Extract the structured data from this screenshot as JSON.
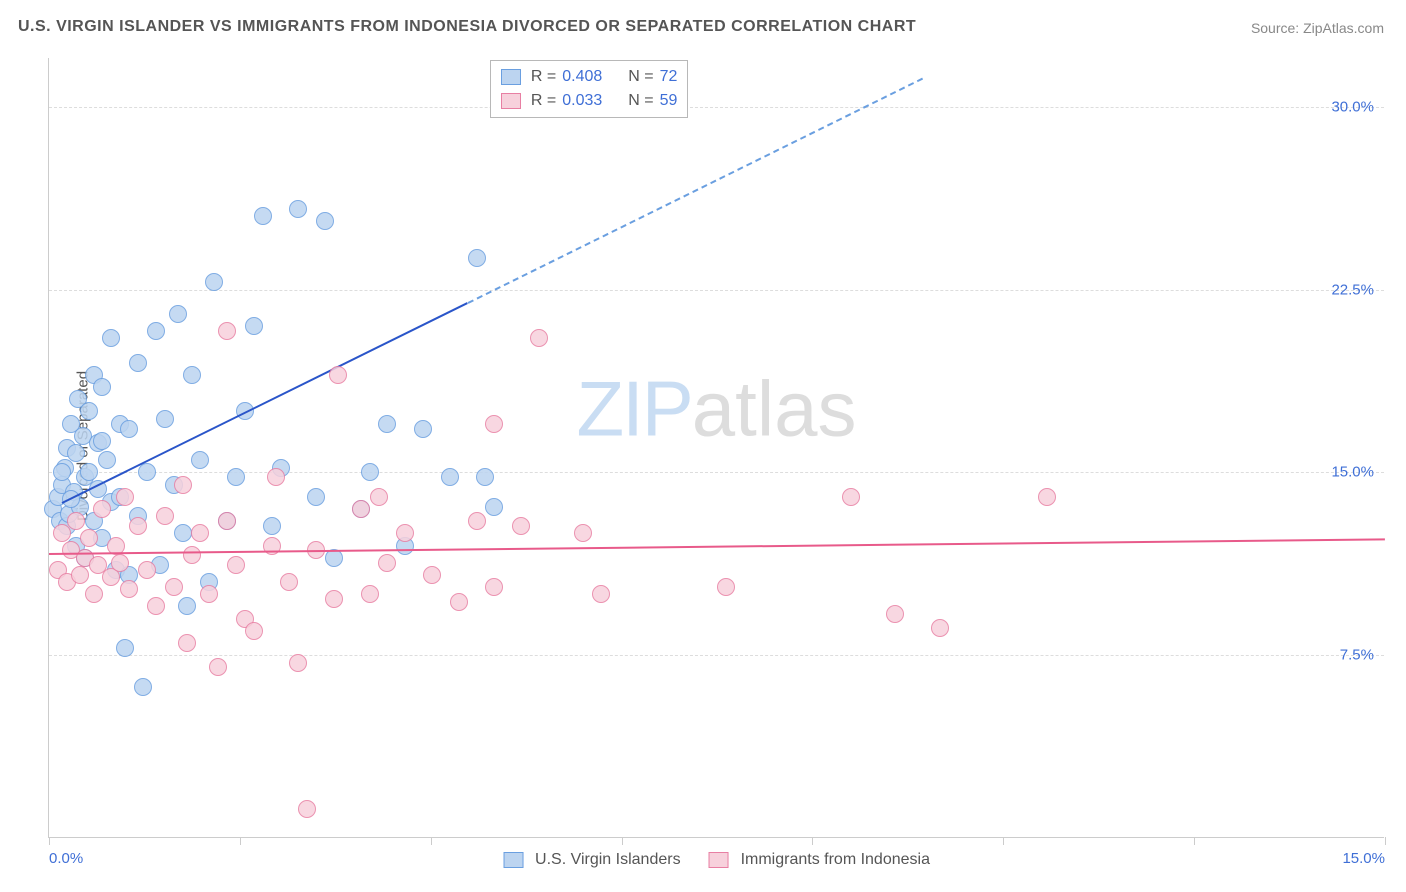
{
  "title": "U.S. VIRGIN ISLANDER VS IMMIGRANTS FROM INDONESIA DIVORCED OR SEPARATED CORRELATION CHART",
  "source_label": "Source: ",
  "source_name": "ZipAtlas.com",
  "y_axis_label": "Divorced or Separated",
  "watermark_zip": "ZIP",
  "watermark_atlas": "atlas",
  "chart": {
    "type": "scatter",
    "x_domain": [
      0,
      15
    ],
    "y_domain": [
      0,
      32
    ],
    "y_ticks": [
      {
        "value": 7.5,
        "label": "7.5%"
      },
      {
        "value": 15.0,
        "label": "15.0%"
      },
      {
        "value": 22.5,
        "label": "22.5%"
      },
      {
        "value": 30.0,
        "label": "30.0%"
      }
    ],
    "x_tick_positions": [
      0,
      2.14,
      4.29,
      6.43,
      8.57,
      10.71,
      12.86,
      15
    ],
    "x_tick_labels": {
      "first": "0.0%",
      "last": "15.0%"
    },
    "x_label_color": "#3f6fd6",
    "y_label_color": "#3f6fd6",
    "grid_color": "#dddddd",
    "marker_radius": 9,
    "series": [
      {
        "id": "usvi",
        "name": "U.S. Virgin Islanders",
        "color_fill": "#bcd4f0",
        "color_stroke": "#6a9fe0",
        "R": "0.408",
        "N": "72",
        "trend": {
          "x0": 0.15,
          "y0": 13.8,
          "x1": 4.7,
          "y1": 22.0,
          "x1_dash": 9.8,
          "y1_dash": 31.2,
          "solid_color": "#2a55c9",
          "dash_color": "#6a9fe0"
        },
        "points": [
          [
            0.05,
            13.5
          ],
          [
            0.1,
            14.0
          ],
          [
            0.12,
            13.0
          ],
          [
            0.15,
            14.5
          ],
          [
            0.18,
            15.2
          ],
          [
            0.2,
            12.8
          ],
          [
            0.2,
            16.0
          ],
          [
            0.22,
            13.3
          ],
          [
            0.25,
            17.0
          ],
          [
            0.28,
            14.2
          ],
          [
            0.3,
            15.8
          ],
          [
            0.3,
            12.0
          ],
          [
            0.32,
            18.0
          ],
          [
            0.35,
            13.6
          ],
          [
            0.38,
            16.5
          ],
          [
            0.4,
            14.8
          ],
          [
            0.4,
            11.5
          ],
          [
            0.45,
            15.0
          ],
          [
            0.45,
            17.5
          ],
          [
            0.5,
            13.0
          ],
          [
            0.5,
            19.0
          ],
          [
            0.55,
            14.3
          ],
          [
            0.55,
            16.2
          ],
          [
            0.6,
            12.3
          ],
          [
            0.6,
            18.5
          ],
          [
            0.65,
            15.5
          ],
          [
            0.7,
            20.5
          ],
          [
            0.7,
            13.8
          ],
          [
            0.75,
            11.0
          ],
          [
            0.8,
            14.0
          ],
          [
            0.8,
            17.0
          ],
          [
            0.85,
            7.8
          ],
          [
            0.9,
            16.8
          ],
          [
            0.9,
            10.8
          ],
          [
            1.0,
            13.2
          ],
          [
            1.0,
            19.5
          ],
          [
            1.05,
            6.2
          ],
          [
            1.1,
            15.0
          ],
          [
            1.2,
            20.8
          ],
          [
            1.25,
            11.2
          ],
          [
            1.3,
            17.2
          ],
          [
            1.4,
            14.5
          ],
          [
            1.45,
            21.5
          ],
          [
            1.5,
            12.5
          ],
          [
            1.55,
            9.5
          ],
          [
            1.6,
            19.0
          ],
          [
            1.7,
            15.5
          ],
          [
            1.8,
            10.5
          ],
          [
            1.85,
            22.8
          ],
          [
            2.0,
            13.0
          ],
          [
            2.1,
            14.8
          ],
          [
            2.2,
            17.5
          ],
          [
            2.3,
            21.0
          ],
          [
            2.5,
            12.8
          ],
          [
            2.6,
            15.2
          ],
          [
            2.8,
            25.8
          ],
          [
            3.0,
            14.0
          ],
          [
            3.1,
            25.3
          ],
          [
            3.2,
            11.5
          ],
          [
            3.5,
            13.5
          ],
          [
            3.6,
            15.0
          ],
          [
            3.8,
            17.0
          ],
          [
            4.0,
            12.0
          ],
          [
            4.2,
            16.8
          ],
          [
            4.5,
            14.8
          ],
          [
            4.8,
            23.8
          ],
          [
            5.0,
            13.6
          ],
          [
            4.9,
            14.8
          ],
          [
            2.4,
            25.5
          ],
          [
            0.6,
            16.3
          ],
          [
            0.15,
            15.0
          ],
          [
            0.25,
            13.9
          ]
        ]
      },
      {
        "id": "indonesia",
        "name": "Immigrants from Indonesia",
        "color_fill": "#f7d1dc",
        "color_stroke": "#e87fa3",
        "R": "0.033",
        "N": "59",
        "trend": {
          "x0": 0.0,
          "y0": 11.7,
          "x1": 15.0,
          "y1": 12.3,
          "solid_color": "#e85a8a"
        },
        "points": [
          [
            0.1,
            11.0
          ],
          [
            0.15,
            12.5
          ],
          [
            0.2,
            10.5
          ],
          [
            0.25,
            11.8
          ],
          [
            0.3,
            13.0
          ],
          [
            0.35,
            10.8
          ],
          [
            0.4,
            11.5
          ],
          [
            0.45,
            12.3
          ],
          [
            0.5,
            10.0
          ],
          [
            0.55,
            11.2
          ],
          [
            0.6,
            13.5
          ],
          [
            0.7,
            10.7
          ],
          [
            0.75,
            12.0
          ],
          [
            0.8,
            11.3
          ],
          [
            0.85,
            14.0
          ],
          [
            0.9,
            10.2
          ],
          [
            1.0,
            12.8
          ],
          [
            1.1,
            11.0
          ],
          [
            1.2,
            9.5
          ],
          [
            1.3,
            13.2
          ],
          [
            1.4,
            10.3
          ],
          [
            1.5,
            14.5
          ],
          [
            1.55,
            8.0
          ],
          [
            1.6,
            11.6
          ],
          [
            1.7,
            12.5
          ],
          [
            1.8,
            10.0
          ],
          [
            1.9,
            7.0
          ],
          [
            2.0,
            13.0
          ],
          [
            2.1,
            11.2
          ],
          [
            2.2,
            9.0
          ],
          [
            2.3,
            8.5
          ],
          [
            2.5,
            12.0
          ],
          [
            2.55,
            14.8
          ],
          [
            2.7,
            10.5
          ],
          [
            2.8,
            7.2
          ],
          [
            2.9,
            1.2
          ],
          [
            3.0,
            11.8
          ],
          [
            3.2,
            9.8
          ],
          [
            3.25,
            19.0
          ],
          [
            3.5,
            13.5
          ],
          [
            3.6,
            10.0
          ],
          [
            3.8,
            11.3
          ],
          [
            4.0,
            12.5
          ],
          [
            4.3,
            10.8
          ],
          [
            4.6,
            9.7
          ],
          [
            4.8,
            13.0
          ],
          [
            5.0,
            10.3
          ],
          [
            5.3,
            12.8
          ],
          [
            5.5,
            20.5
          ],
          [
            3.7,
            14.0
          ],
          [
            5.0,
            17.0
          ],
          [
            6.0,
            12.5
          ],
          [
            6.2,
            10.0
          ],
          [
            7.6,
            10.3
          ],
          [
            9.0,
            14.0
          ],
          [
            9.5,
            9.2
          ],
          [
            10.0,
            8.6
          ],
          [
            11.2,
            14.0
          ],
          [
            2.0,
            20.8
          ]
        ]
      }
    ],
    "legend_top": {
      "R_label": "R =",
      "N_label": "N =",
      "R_color": "#3f6fd6",
      "N_color": "#3f6fd6",
      "text_color": "#555555"
    }
  }
}
